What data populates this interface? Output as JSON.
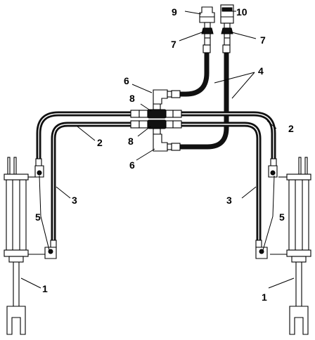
{
  "callouts": {
    "c1_left": "1",
    "c1_right": "1",
    "c2_left": "2",
    "c2_right": "2",
    "c3_left": "3",
    "c3_right": "3",
    "c4": "4",
    "c5_left": "5",
    "c5_right": "5",
    "c6_top": "6",
    "c6_bottom": "6",
    "c7_left": "7",
    "c7_right": "7",
    "c8_top": "8",
    "c8_bottom": "8",
    "c9": "9",
    "c10": "10"
  },
  "colors": {
    "line": "#000000",
    "hose": "#111111",
    "background": "#ffffff"
  }
}
